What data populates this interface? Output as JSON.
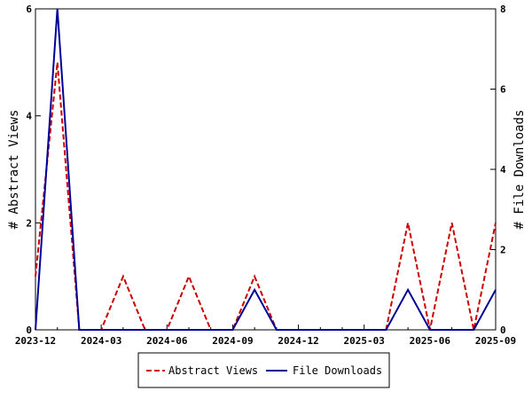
{
  "chart_data": {
    "type": "line",
    "title": "",
    "x": [
      "2023-12",
      "2024-01",
      "2024-02",
      "2024-03",
      "2024-04",
      "2024-05",
      "2024-06",
      "2024-07",
      "2024-08",
      "2024-09",
      "2024-10",
      "2024-11",
      "2024-12",
      "2025-01",
      "2025-02",
      "2025-03",
      "2025-04",
      "2025-05",
      "2025-06",
      "2025-07",
      "2025-08",
      "2025-09"
    ],
    "xticks": [
      "2023-12",
      "2024-03",
      "2024-06",
      "2024-09",
      "2024-12",
      "2025-03",
      "2025-06",
      "2025-09"
    ],
    "ylabel_left": "# Abstract Views",
    "ylabel_right": "# File Downloads",
    "ylim_left": [
      0,
      6
    ],
    "ylim_right": [
      0,
      8
    ],
    "yticks_left": [
      "0",
      "2",
      "4",
      "6"
    ],
    "yticks_right": [
      "0",
      "2",
      "4",
      "6",
      "8"
    ],
    "legend_position": "bottom",
    "series": [
      {
        "name": "Abstract Views",
        "axis": "left",
        "color": "#cc0000",
        "dash": "dashed",
        "values": [
          1,
          5,
          0,
          0,
          1,
          0,
          0,
          1,
          0,
          0,
          1,
          0,
          0,
          0,
          0,
          0,
          0,
          2,
          0,
          2,
          0,
          2
        ]
      },
      {
        "name": "File Downloads",
        "axis": "right",
        "color": "#000099",
        "dash": "solid",
        "values": [
          0,
          8,
          0,
          0,
          0,
          0,
          0,
          0,
          0,
          0,
          1,
          0,
          0,
          0,
          0,
          0,
          0,
          1,
          0,
          0,
          0,
          1
        ]
      }
    ]
  }
}
